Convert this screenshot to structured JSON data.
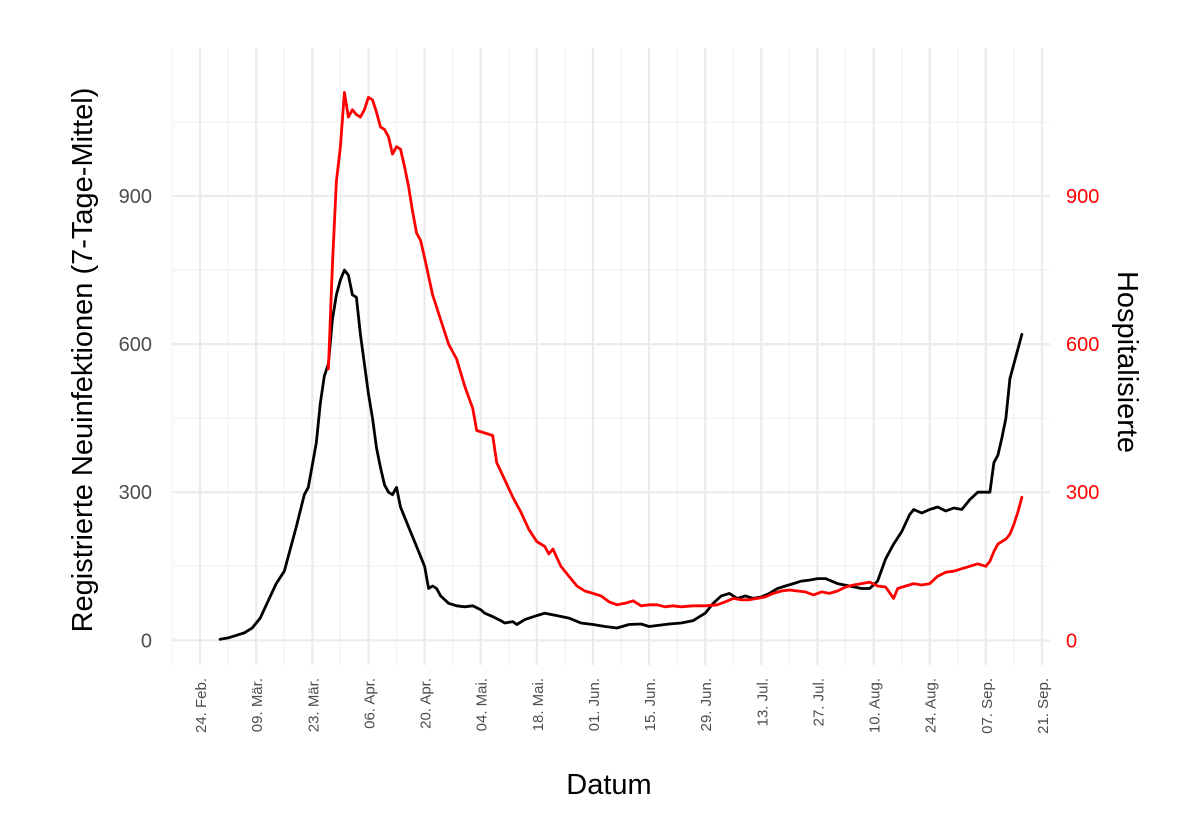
{
  "chart_data": {
    "type": "line",
    "xlabel": "Datum",
    "ylabel_left": "Registrierte Neuinfektionen (7-Tage-Mittel)",
    "ylabel_right": "Hospitalisierte",
    "x_axis": {
      "type": "date",
      "range": [
        "2020-02-17",
        "2020-09-23"
      ],
      "tick_dates": [
        "2020-02-24",
        "2020-03-09",
        "2020-03-23",
        "2020-04-06",
        "2020-04-20",
        "2020-05-04",
        "2020-05-18",
        "2020-06-01",
        "2020-06-15",
        "2020-06-29",
        "2020-07-13",
        "2020-07-27",
        "2020-08-10",
        "2020-08-24",
        "2020-09-07",
        "2020-09-21"
      ],
      "tick_labels": [
        "24. Feb.",
        "09. Mär.",
        "23. Mär.",
        "06. Apr.",
        "20. Apr.",
        "04. Mai.",
        "18. Mai.",
        "01. Jun.",
        "15. Jun.",
        "29. Jun.",
        "13. Jul.",
        "27. Jul.",
        "10. Aug.",
        "24. Aug.",
        "07. Sep.",
        "21. Sep."
      ],
      "label_rotation": "vertical"
    },
    "y_axis_left": {
      "range": [
        -50,
        1200
      ],
      "ticks": [
        0,
        300,
        600,
        900
      ],
      "tick_labels": [
        "0",
        "300",
        "600",
        "900"
      ]
    },
    "y_axis_right": {
      "range": [
        -50,
        1200
      ],
      "ticks": [
        0,
        300,
        600,
        900
      ],
      "tick_labels": [
        "0",
        "300",
        "600",
        "900"
      ],
      "color": "#ff0000"
    },
    "grid": true,
    "legend": "none",
    "series": [
      {
        "axis": "left",
        "color": "#000000",
        "points": [
          [
            "2020-02-29",
            2
          ],
          [
            "2020-03-02",
            5
          ],
          [
            "2020-03-04",
            10
          ],
          [
            "2020-03-06",
            15
          ],
          [
            "2020-03-08",
            25
          ],
          [
            "2020-03-10",
            45
          ],
          [
            "2020-03-12",
            80
          ],
          [
            "2020-03-14",
            115
          ],
          [
            "2020-03-16",
            140
          ],
          [
            "2020-03-17",
            170
          ],
          [
            "2020-03-19",
            230
          ],
          [
            "2020-03-21",
            295
          ],
          [
            "2020-03-22",
            310
          ],
          [
            "2020-03-24",
            400
          ],
          [
            "2020-03-25",
            480
          ],
          [
            "2020-03-26",
            535
          ],
          [
            "2020-03-27",
            560
          ],
          [
            "2020-03-28",
            650
          ],
          [
            "2020-03-29",
            700
          ],
          [
            "2020-03-30",
            730
          ],
          [
            "2020-03-31",
            750
          ],
          [
            "2020-04-01",
            740
          ],
          [
            "2020-04-02",
            700
          ],
          [
            "2020-04-03",
            695
          ],
          [
            "2020-04-04",
            620
          ],
          [
            "2020-04-05",
            560
          ],
          [
            "2020-04-06",
            500
          ],
          [
            "2020-04-07",
            450
          ],
          [
            "2020-04-08",
            390
          ],
          [
            "2020-04-09",
            350
          ],
          [
            "2020-04-10",
            315
          ],
          [
            "2020-04-11",
            300
          ],
          [
            "2020-04-12",
            295
          ],
          [
            "2020-04-13",
            310
          ],
          [
            "2020-04-14",
            270
          ],
          [
            "2020-04-16",
            230
          ],
          [
            "2020-04-18",
            190
          ],
          [
            "2020-04-20",
            150
          ],
          [
            "2020-04-21",
            105
          ],
          [
            "2020-04-22",
            110
          ],
          [
            "2020-04-23",
            105
          ],
          [
            "2020-04-24",
            90
          ],
          [
            "2020-04-26",
            75
          ],
          [
            "2020-04-28",
            70
          ],
          [
            "2020-04-30",
            68
          ],
          [
            "2020-05-02",
            70
          ],
          [
            "2020-05-04",
            62
          ],
          [
            "2020-05-05",
            55
          ],
          [
            "2020-05-07",
            48
          ],
          [
            "2020-05-09",
            40
          ],
          [
            "2020-05-10",
            35
          ],
          [
            "2020-05-12",
            38
          ],
          [
            "2020-05-13",
            32
          ],
          [
            "2020-05-15",
            42
          ],
          [
            "2020-05-18",
            50
          ],
          [
            "2020-05-20",
            55
          ],
          [
            "2020-05-23",
            50
          ],
          [
            "2020-05-26",
            45
          ],
          [
            "2020-05-29",
            35
          ],
          [
            "2020-06-01",
            32
          ],
          [
            "2020-06-04",
            28
          ],
          [
            "2020-06-07",
            25
          ],
          [
            "2020-06-10",
            32
          ],
          [
            "2020-06-13",
            33
          ],
          [
            "2020-06-15",
            28
          ],
          [
            "2020-06-17",
            30
          ],
          [
            "2020-06-20",
            33
          ],
          [
            "2020-06-23",
            35
          ],
          [
            "2020-06-26",
            40
          ],
          [
            "2020-06-29",
            55
          ],
          [
            "2020-07-01",
            75
          ],
          [
            "2020-07-03",
            90
          ],
          [
            "2020-07-05",
            95
          ],
          [
            "2020-07-07",
            85
          ],
          [
            "2020-07-09",
            90
          ],
          [
            "2020-07-11",
            85
          ],
          [
            "2020-07-13",
            88
          ],
          [
            "2020-07-15",
            95
          ],
          [
            "2020-07-17",
            105
          ],
          [
            "2020-07-19",
            110
          ],
          [
            "2020-07-21",
            115
          ],
          [
            "2020-07-23",
            120
          ],
          [
            "2020-07-25",
            122
          ],
          [
            "2020-07-27",
            125
          ],
          [
            "2020-07-29",
            125
          ],
          [
            "2020-08-01",
            115
          ],
          [
            "2020-08-04",
            110
          ],
          [
            "2020-08-07",
            105
          ],
          [
            "2020-08-09",
            105
          ],
          [
            "2020-08-11",
            120
          ],
          [
            "2020-08-13",
            165
          ],
          [
            "2020-08-15",
            195
          ],
          [
            "2020-08-17",
            220
          ],
          [
            "2020-08-19",
            255
          ],
          [
            "2020-08-20",
            265
          ],
          [
            "2020-08-22",
            258
          ],
          [
            "2020-08-24",
            265
          ],
          [
            "2020-08-26",
            270
          ],
          [
            "2020-08-28",
            262
          ],
          [
            "2020-08-30",
            268
          ],
          [
            "2020-09-01",
            265
          ],
          [
            "2020-09-03",
            285
          ],
          [
            "2020-09-05",
            300
          ],
          [
            "2020-09-07",
            300
          ],
          [
            "2020-09-08",
            300
          ],
          [
            "2020-09-09",
            360
          ],
          [
            "2020-09-10",
            375
          ],
          [
            "2020-09-11",
            410
          ],
          [
            "2020-09-12",
            450
          ],
          [
            "2020-09-13",
            530
          ],
          [
            "2020-09-14",
            560
          ],
          [
            "2020-09-15",
            590
          ],
          [
            "2020-09-16",
            620
          ]
        ]
      },
      {
        "axis": "right",
        "color": "#ff0000",
        "points": [
          [
            "2020-03-27",
            550
          ],
          [
            "2020-03-28",
            760
          ],
          [
            "2020-03-29",
            930
          ],
          [
            "2020-03-30",
            1000
          ],
          [
            "2020-03-31",
            1110
          ],
          [
            "2020-04-01",
            1060
          ],
          [
            "2020-04-02",
            1075
          ],
          [
            "2020-04-03",
            1065
          ],
          [
            "2020-04-04",
            1060
          ],
          [
            "2020-04-05",
            1075
          ],
          [
            "2020-04-06",
            1100
          ],
          [
            "2020-04-07",
            1095
          ],
          [
            "2020-04-08",
            1070
          ],
          [
            "2020-04-09",
            1040
          ],
          [
            "2020-04-10",
            1035
          ],
          [
            "2020-04-11",
            1020
          ],
          [
            "2020-04-12",
            985
          ],
          [
            "2020-04-13",
            1000
          ],
          [
            "2020-04-14",
            995
          ],
          [
            "2020-04-15",
            960
          ],
          [
            "2020-04-16",
            920
          ],
          [
            "2020-04-17",
            870
          ],
          [
            "2020-04-18",
            825
          ],
          [
            "2020-04-19",
            810
          ],
          [
            "2020-04-20",
            775
          ],
          [
            "2020-04-22",
            700
          ],
          [
            "2020-04-24",
            650
          ],
          [
            "2020-04-26",
            600
          ],
          [
            "2020-04-28",
            570
          ],
          [
            "2020-04-30",
            515
          ],
          [
            "2020-05-02",
            470
          ],
          [
            "2020-05-03",
            425
          ],
          [
            "2020-05-05",
            420
          ],
          [
            "2020-05-07",
            415
          ],
          [
            "2020-05-08",
            360
          ],
          [
            "2020-05-10",
            325
          ],
          [
            "2020-05-12",
            290
          ],
          [
            "2020-05-14",
            260
          ],
          [
            "2020-05-16",
            225
          ],
          [
            "2020-05-18",
            200
          ],
          [
            "2020-05-20",
            190
          ],
          [
            "2020-05-21",
            175
          ],
          [
            "2020-05-22",
            185
          ],
          [
            "2020-05-24",
            150
          ],
          [
            "2020-05-26",
            130
          ],
          [
            "2020-05-28",
            110
          ],
          [
            "2020-05-30",
            100
          ],
          [
            "2020-06-01",
            95
          ],
          [
            "2020-06-03",
            90
          ],
          [
            "2020-06-05",
            78
          ],
          [
            "2020-06-07",
            72
          ],
          [
            "2020-06-09",
            75
          ],
          [
            "2020-06-11",
            80
          ],
          [
            "2020-06-13",
            70
          ],
          [
            "2020-06-15",
            72
          ],
          [
            "2020-06-17",
            72
          ],
          [
            "2020-06-19",
            68
          ],
          [
            "2020-06-21",
            70
          ],
          [
            "2020-06-23",
            68
          ],
          [
            "2020-06-26",
            70
          ],
          [
            "2020-06-29",
            70
          ],
          [
            "2020-07-02",
            72
          ],
          [
            "2020-07-04",
            78
          ],
          [
            "2020-07-06",
            85
          ],
          [
            "2020-07-08",
            82
          ],
          [
            "2020-07-10",
            82
          ],
          [
            "2020-07-12",
            85
          ],
          [
            "2020-07-14",
            88
          ],
          [
            "2020-07-16",
            95
          ],
          [
            "2020-07-18",
            100
          ],
          [
            "2020-07-20",
            102
          ],
          [
            "2020-07-22",
            100
          ],
          [
            "2020-07-24",
            98
          ],
          [
            "2020-07-26",
            92
          ],
          [
            "2020-07-28",
            98
          ],
          [
            "2020-07-30",
            95
          ],
          [
            "2020-08-01",
            100
          ],
          [
            "2020-08-03",
            108
          ],
          [
            "2020-08-05",
            112
          ],
          [
            "2020-08-07",
            115
          ],
          [
            "2020-08-09",
            118
          ],
          [
            "2020-08-11",
            110
          ],
          [
            "2020-08-13",
            108
          ],
          [
            "2020-08-15",
            85
          ],
          [
            "2020-08-16",
            105
          ],
          [
            "2020-08-18",
            110
          ],
          [
            "2020-08-20",
            115
          ],
          [
            "2020-08-22",
            112
          ],
          [
            "2020-08-24",
            115
          ],
          [
            "2020-08-26",
            130
          ],
          [
            "2020-08-28",
            138
          ],
          [
            "2020-08-30",
            140
          ],
          [
            "2020-09-01",
            145
          ],
          [
            "2020-09-03",
            150
          ],
          [
            "2020-09-05",
            155
          ],
          [
            "2020-09-07",
            150
          ],
          [
            "2020-09-08",
            160
          ],
          [
            "2020-09-09",
            180
          ],
          [
            "2020-09-10",
            195
          ],
          [
            "2020-09-11",
            200
          ],
          [
            "2020-09-12",
            205
          ],
          [
            "2020-09-13",
            215
          ],
          [
            "2020-09-14",
            235
          ],
          [
            "2020-09-15",
            260
          ],
          [
            "2020-09-16",
            290
          ]
        ]
      }
    ]
  }
}
